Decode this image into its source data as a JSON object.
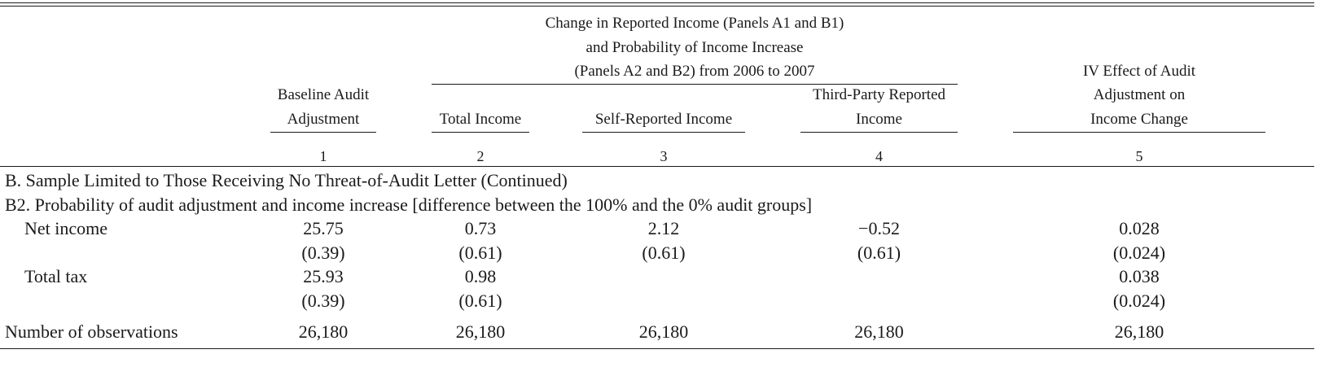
{
  "header": {
    "group_title": [
      "Change in Reported Income (Panels A1 and B1)",
      "and Probability of Income Increase",
      "(Panels A2 and B2) from 2006 to 2007"
    ],
    "columns": [
      {
        "lines": [
          "Baseline Audit",
          "Adjustment"
        ],
        "number": "1"
      },
      {
        "lines": [
          "Total Income"
        ],
        "number": "2"
      },
      {
        "lines": [
          "Self-Reported Income"
        ],
        "number": "3"
      },
      {
        "lines": [
          "Third-Party Reported",
          "Income"
        ],
        "number": "4"
      },
      {
        "lines": [
          "IV Effect of Audit",
          "Adjustment on",
          "Income Change"
        ],
        "number": "5"
      }
    ]
  },
  "panel_b_title": "B. Sample Limited to Those Receiving No Threat-of-Audit Letter (Continued)",
  "panel_b2_title": "B2. Probability of audit adjustment and income increase [difference between the 100% and the 0% audit groups]",
  "rows": [
    {
      "label": "Net income",
      "estimates": [
        "25.75",
        "0.73",
        "2.12",
        "−0.52",
        "0.028"
      ],
      "std_errors": [
        "(0.39)",
        "(0.61)",
        "(0.61)",
        "(0.61)",
        "(0.024)"
      ]
    },
    {
      "label": "Total tax",
      "estimates": [
        "25.93",
        "0.98",
        "",
        "",
        "0.038"
      ],
      "std_errors": [
        "(0.39)",
        "(0.61)",
        "",
        "",
        "(0.024)"
      ]
    }
  ],
  "observations": {
    "label": "Number of observations",
    "values": [
      "26,180",
      "26,180",
      "26,180",
      "26,180",
      "26,180"
    ]
  }
}
